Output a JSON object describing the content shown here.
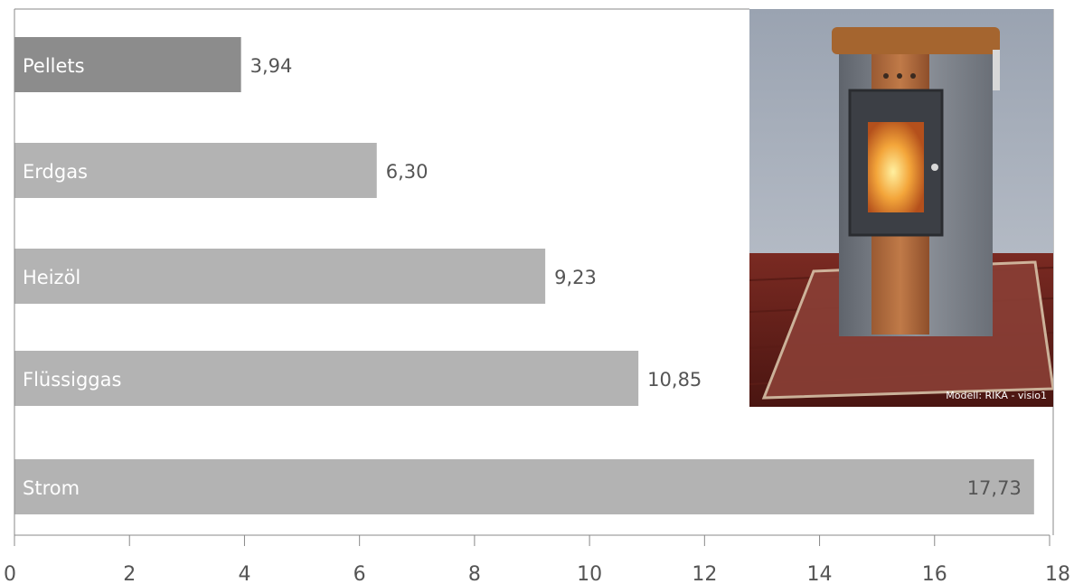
{
  "chart_data": {
    "type": "bar",
    "orientation": "horizontal",
    "categories": [
      "Pellets",
      "Erdgas",
      "Heizöl",
      "Flüssiggas",
      "Strom"
    ],
    "values": [
      3.94,
      6.3,
      9.23,
      10.85,
      17.73
    ],
    "value_labels": [
      "3,94",
      "6,30",
      "9,23",
      "10,85",
      "17,73"
    ],
    "xlim": [
      0,
      18
    ],
    "xticks": [
      0,
      2,
      4,
      6,
      8,
      10,
      12,
      14,
      16,
      18
    ],
    "tick_labels": [
      "0",
      "2",
      "4",
      "6",
      "8",
      "10",
      "12",
      "14",
      "16",
      "18"
    ],
    "grid": false,
    "colors": {
      "highlight": "#8c8c8c",
      "default": "#b3b3b3",
      "axis": "#888888",
      "text": "#555555"
    },
    "highlight_index": 0
  },
  "photo": {
    "caption": "Modell: RIKA - visio1"
  }
}
